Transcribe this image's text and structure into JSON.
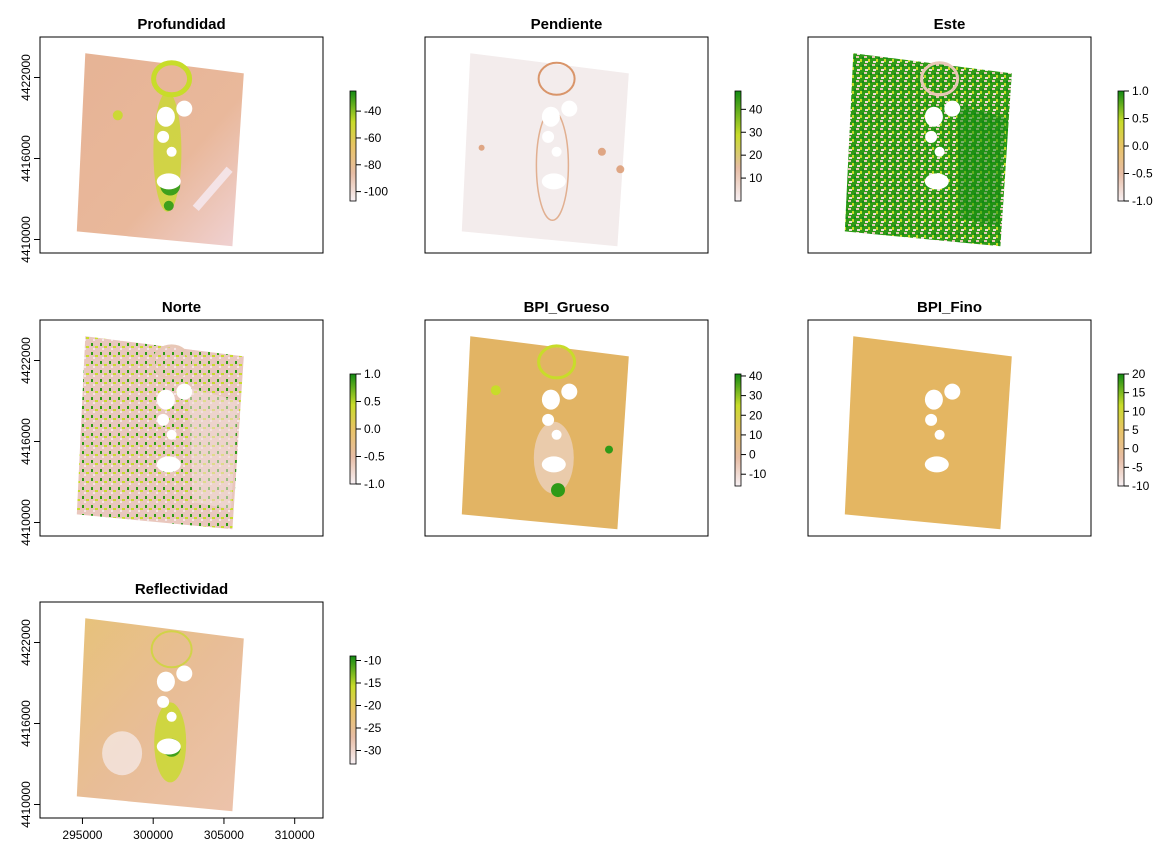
{
  "chart_data": [
    {
      "type": "heatmap",
      "title": "Profundidad",
      "xlim": [
        292000,
        312000
      ],
      "ylim": [
        4409000,
        4425000
      ],
      "y_ticks": [
        4410000,
        4416000,
        4422000
      ],
      "legend_ticks": [
        -40,
        -60,
        -80,
        -100
      ],
      "legend_range": [
        -107,
        -25
      ],
      "show_y_axis": true,
      "show_x_axis": false
    },
    {
      "type": "heatmap",
      "title": "Pendiente",
      "xlim": [
        292000,
        312000
      ],
      "ylim": [
        4409000,
        4425000
      ],
      "y_ticks": [],
      "legend_ticks": [
        40,
        30,
        20,
        10
      ],
      "legend_range": [
        0,
        48
      ],
      "show_y_axis": false,
      "show_x_axis": false
    },
    {
      "type": "heatmap",
      "title": "Este",
      "xlim": [
        292000,
        312000
      ],
      "ylim": [
        4409000,
        4425000
      ],
      "y_ticks": [],
      "legend_ticks": [
        "1.0",
        "0.5",
        "0.0",
        "-0.5",
        "-1.0"
      ],
      "legend_range": [
        -1,
        1
      ],
      "show_y_axis": false,
      "show_x_axis": false
    },
    {
      "type": "heatmap",
      "title": "Norte",
      "xlim": [
        292000,
        312000
      ],
      "ylim": [
        4409000,
        4425000
      ],
      "y_ticks": [
        4410000,
        4416000,
        4422000
      ],
      "legend_ticks": [
        "1.0",
        "0.5",
        "0.0",
        "-0.5",
        "-1.0"
      ],
      "legend_range": [
        -1,
        1
      ],
      "show_y_axis": true,
      "show_x_axis": false
    },
    {
      "type": "heatmap",
      "title": "BPI_Grueso",
      "xlim": [
        292000,
        312000
      ],
      "ylim": [
        4409000,
        4425000
      ],
      "y_ticks": [],
      "legend_ticks": [
        40,
        30,
        20,
        10,
        0,
        -10
      ],
      "legend_range": [
        -16,
        41
      ],
      "show_y_axis": false,
      "show_x_axis": false
    },
    {
      "type": "heatmap",
      "title": "BPI_Fino",
      "xlim": [
        292000,
        312000
      ],
      "ylim": [
        4409000,
        4425000
      ],
      "y_ticks": [],
      "legend_ticks": [
        20,
        15,
        10,
        5,
        0,
        -5,
        -10
      ],
      "legend_range": [
        -10,
        20
      ],
      "show_y_axis": false,
      "show_x_axis": false
    },
    {
      "type": "heatmap",
      "title": "Reflectividad",
      "xlim": [
        292000,
        312000
      ],
      "ylim": [
        4409000,
        4425000
      ],
      "y_ticks": [
        4410000,
        4416000,
        4422000
      ],
      "x_ticks": [
        295000,
        300000,
        305000,
        310000
      ],
      "legend_ticks": [
        -10,
        -15,
        -20,
        -25,
        -30
      ],
      "legend_range": [
        -33,
        -9
      ],
      "show_y_axis": true,
      "show_x_axis": true
    }
  ],
  "colors": {
    "low": "#f1dfe6",
    "mid_low": "#e6b89a",
    "mid": "#e8c466",
    "mid_high": "#c8dc2a",
    "high": "#138a13",
    "slope_background": "#f3ecec",
    "slope_features": "#d9956a",
    "frame": "#000000"
  }
}
